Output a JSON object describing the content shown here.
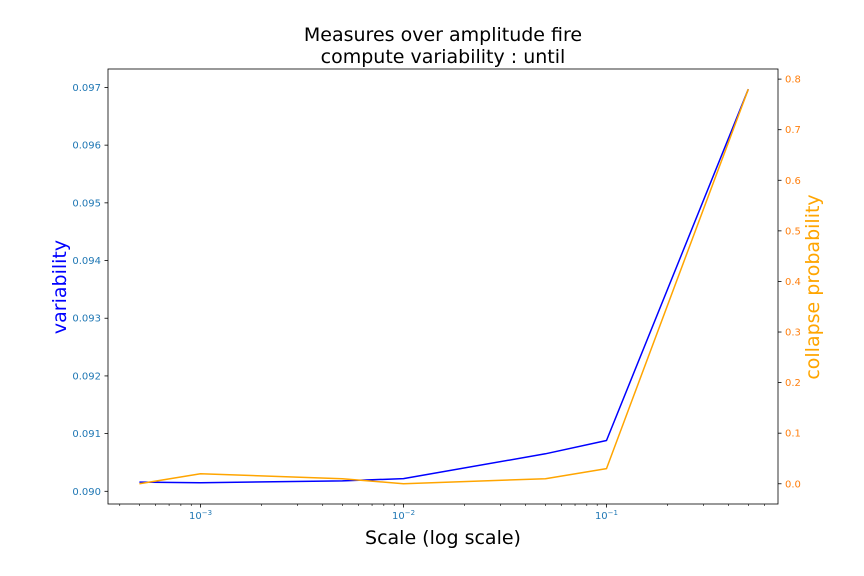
{
  "chart_data": {
    "type": "line",
    "title": [
      "Measures over amplitude fire",
      "compute variability : until"
    ],
    "xlabel": "Scale (log scale)",
    "xscale": "log",
    "xlim": [
      0.00035,
      0.7
    ],
    "x_ticks": [
      {
        "value": 0.001,
        "base": "10",
        "exp": "−3"
      },
      {
        "value": 0.01,
        "base": "10",
        "exp": "−2"
      },
      {
        "value": 0.1,
        "base": "10",
        "exp": "−1"
      }
    ],
    "x": [
      0.0005,
      0.001,
      0.005,
      0.01,
      0.05,
      0.1,
      0.5
    ],
    "grid": false,
    "series": [
      {
        "name": "variability",
        "axis": "left",
        "color": "#0000ff",
        "values": [
          0.09016,
          0.09015,
          0.09018,
          0.09022,
          0.09065,
          0.09088,
          0.09697
        ]
      },
      {
        "name": "collapse probability",
        "axis": "right",
        "color": "#ffa500",
        "values": [
          0.0,
          0.02,
          0.01,
          0.0,
          0.01,
          0.03,
          0.78
        ]
      }
    ],
    "y_left": {
      "label": "variability",
      "label_color": "#0000ff",
      "tick_color": "#1f77b4",
      "ylim": [
        0.08978,
        0.09732
      ],
      "ticks": [
        "0.090",
        "0.091",
        "0.092",
        "0.093",
        "0.094",
        "0.095",
        "0.096",
        "0.097"
      ]
    },
    "y_right": {
      "label": "collapse probability",
      "label_color": "#ffa500",
      "tick_color": "#ff7f0e",
      "ylim": [
        -0.04,
        0.82
      ],
      "ticks": [
        "0.0",
        "0.1",
        "0.2",
        "0.3",
        "0.4",
        "0.5",
        "0.6",
        "0.7",
        "0.8"
      ]
    }
  }
}
